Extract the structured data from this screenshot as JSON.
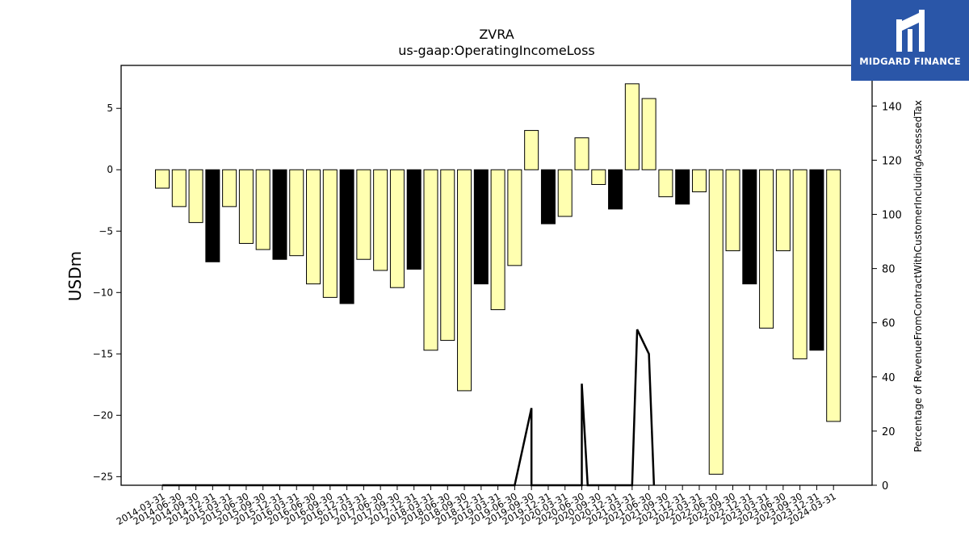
{
  "chart_data": {
    "type": "bar",
    "title": "ZVRA",
    "subtitle": "us-gaap:OperatingIncomeLoss",
    "ylabel": "USDm",
    "y2label": "Percentage of RevenueFromContractWithCustomerIncludingAssessedTax",
    "ylim": [
      -25.7,
      8.5
    ],
    "y2lim": [
      0,
      155
    ],
    "yticks": [
      5,
      0,
      -5,
      -10,
      -15,
      -20,
      -25
    ],
    "y2ticks": [
      0,
      20,
      40,
      60,
      80,
      100,
      120,
      140
    ],
    "grid": false,
    "legend": "none",
    "colors": {
      "bar_yellow": "#ffffb0",
      "bar_black": "#000000",
      "line": "#000000",
      "edge": "#000000"
    },
    "categories": [
      "2014-03-31",
      "2014-06-30",
      "2014-09-30",
      "2014-12-31",
      "2015-03-31",
      "2015-06-30",
      "2015-09-30",
      "2015-12-31",
      "2016-03-31",
      "2016-06-30",
      "2016-09-30",
      "2016-12-31",
      "2017-03-31",
      "2017-06-30",
      "2017-09-30",
      "2017-12-31",
      "2018-03-31",
      "2018-06-30",
      "2018-09-30",
      "2018-12-31",
      "2019-03-31",
      "2019-06-30",
      "2019-09-30",
      "2019-12-31",
      "2020-03-31",
      "2020-06-30",
      "2020-09-30",
      "2020-12-31",
      "2021-03-31",
      "2021-06-30",
      "2021-09-30",
      "2021-12-31",
      "2022-03-31",
      "2022-06-30",
      "2022-09-30",
      "2022-12-31",
      "2023-03-31",
      "2023-06-30",
      "2023-09-30",
      "2023-12-31",
      "2024-03-31"
    ],
    "series": [
      {
        "kind": "bar",
        "axis": "left",
        "values": [
          -1.5,
          -3.0,
          -4.3,
          -7.5,
          -3.0,
          -6.0,
          -6.5,
          -7.3,
          -7.0,
          -9.3,
          -10.4,
          -10.9,
          -7.3,
          -8.2,
          -9.6,
          -8.1,
          -14.7,
          -13.9,
          -18.0,
          -9.3,
          -11.4,
          -7.8,
          3.2,
          -4.4,
          -3.8,
          2.6,
          -1.2,
          -3.2,
          7.0,
          5.8,
          -2.2,
          -2.8,
          -1.8,
          -24.8,
          -6.6,
          -9.3,
          -12.9,
          -6.6,
          -15.4,
          -14.7,
          -20.5
        ],
        "colors": [
          "yellow",
          "yellow",
          "yellow",
          "black",
          "yellow",
          "yellow",
          "yellow",
          "black",
          "yellow",
          "yellow",
          "yellow",
          "black",
          "yellow",
          "yellow",
          "yellow",
          "black",
          "yellow",
          "yellow",
          "yellow",
          "black",
          "yellow",
          "yellow",
          "yellow",
          "black",
          "yellow",
          "yellow",
          "yellow",
          "black",
          "yellow",
          "yellow",
          "yellow",
          "black",
          "yellow",
          "yellow",
          "yellow",
          "black",
          "yellow",
          "yellow",
          "yellow",
          "black",
          "yellow"
        ]
      },
      {
        "kind": "line",
        "axis": "right",
        "points": [
          [
            0,
            0
          ],
          [
            21,
            0
          ],
          [
            22,
            28.5
          ],
          [
            22,
            0
          ],
          [
            25,
            0
          ],
          [
            25,
            37.5
          ],
          [
            25.35,
            0
          ],
          [
            28,
            0
          ],
          [
            28.3,
            57.5
          ],
          [
            29,
            48.5
          ],
          [
            29.3,
            0
          ]
        ]
      }
    ]
  },
  "logo": {
    "text": "MIDGARD FINANCE",
    "mark": "midgard-logo-icon"
  }
}
